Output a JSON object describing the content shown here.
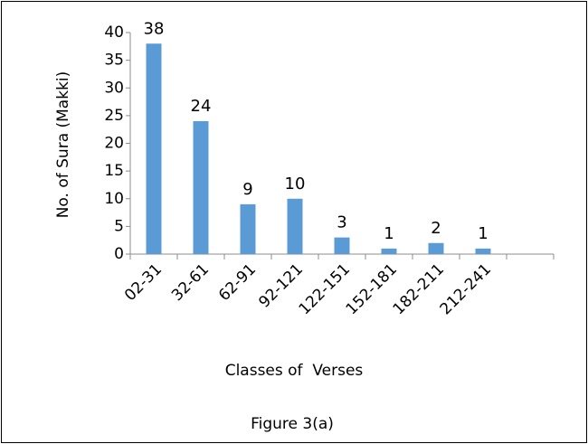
{
  "chart_data": {
    "type": "bar",
    "caption": "Figure 3(a)",
    "x_label": "Classes of  Verses",
    "y_label": "No. of Sura (Makki)",
    "categories": [
      "02-31",
      "32-61",
      "62-91",
      "92-121",
      "122-151",
      "152-181",
      "182-211",
      "212-241",
      null
    ],
    "values": [
      38,
      24,
      9,
      10,
      3,
      1,
      2,
      1,
      null
    ],
    "color": "#5b9bd5",
    "ylim": [
      0,
      40
    ],
    "yticks": [
      0,
      5,
      10,
      15,
      20,
      25,
      30,
      35,
      40
    ],
    "grid": false
  }
}
